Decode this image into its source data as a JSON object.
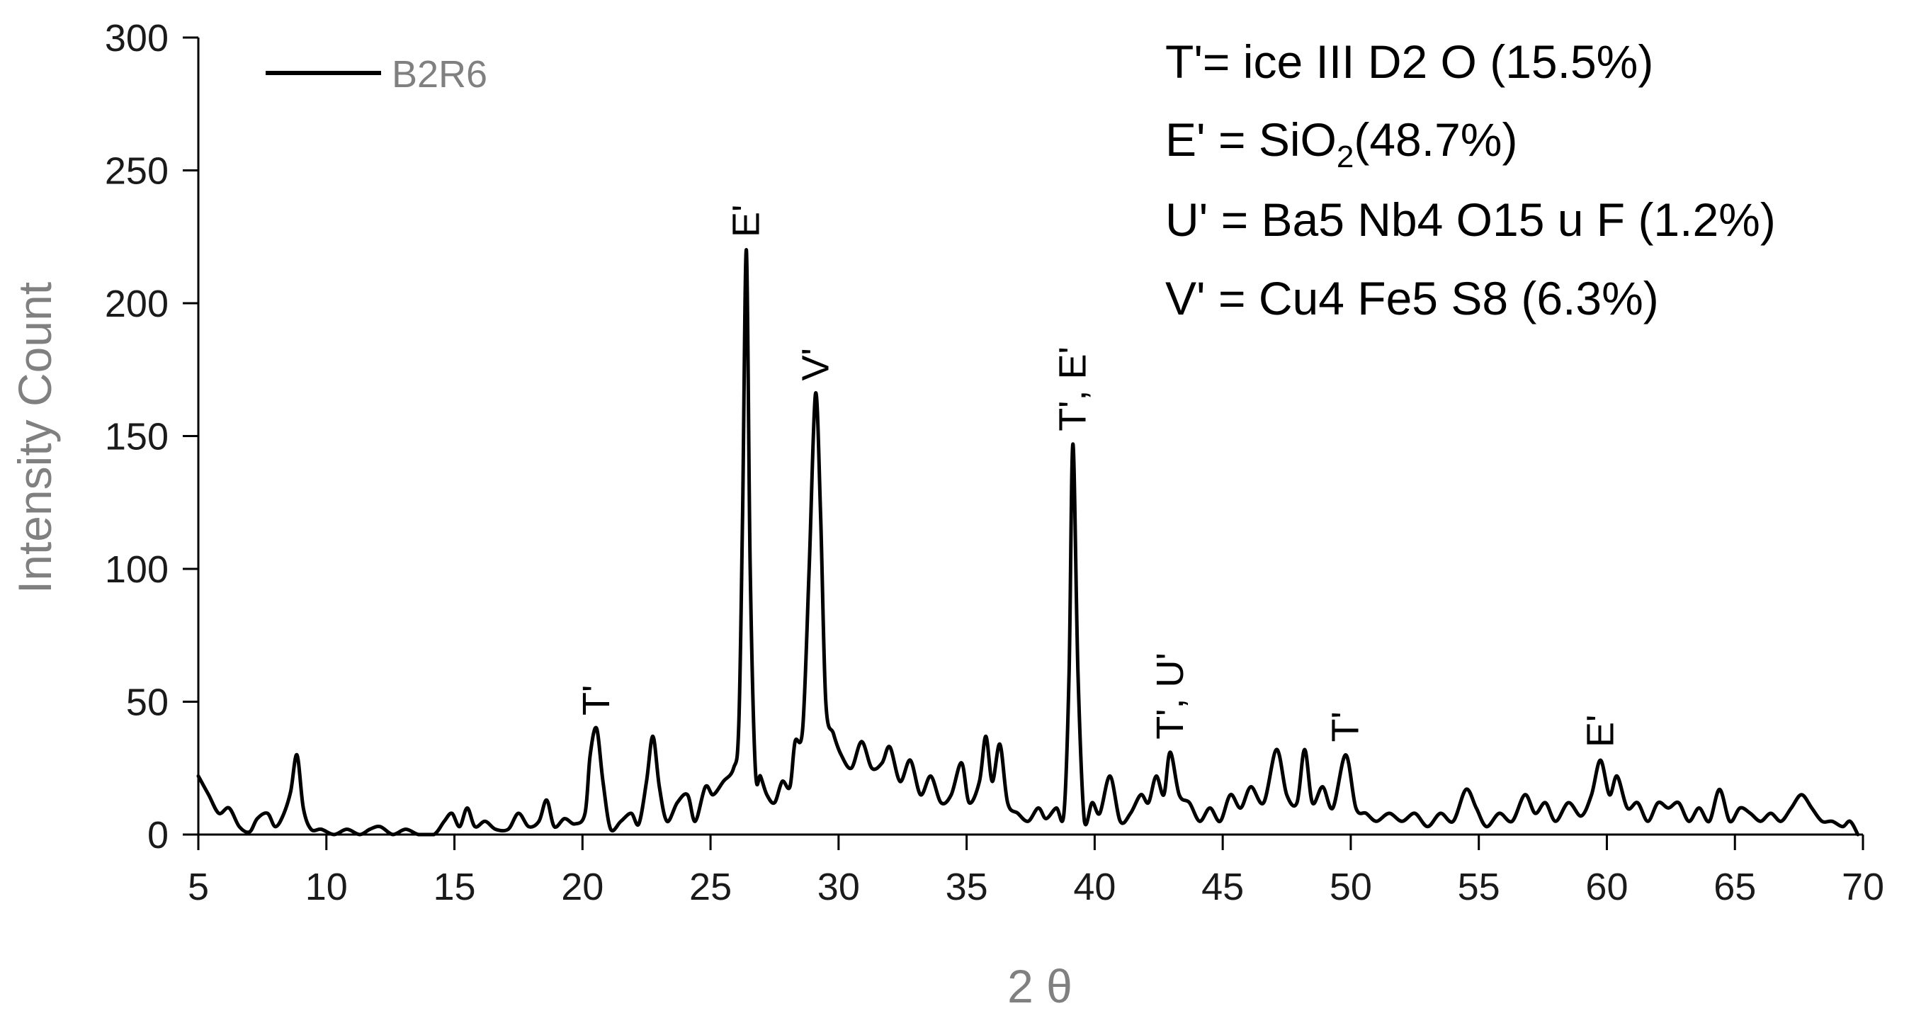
{
  "chart_data": {
    "type": "line",
    "xlabel": "2 θ",
    "ylabel": "Intensity Count",
    "xlim": [
      5,
      70
    ],
    "ylim": [
      0,
      300
    ],
    "x_ticks": [
      5,
      10,
      15,
      20,
      25,
      30,
      35,
      40,
      45,
      50,
      55,
      60,
      65,
      70
    ],
    "y_ticks": [
      0,
      50,
      100,
      150,
      200,
      250,
      300
    ],
    "x_tick_labels": [
      "5",
      "10",
      "15",
      "20",
      "25",
      "30",
      "35",
      "40",
      "45",
      "50",
      "55",
      "60",
      "65",
      "70"
    ],
    "y_tick_labels": [
      "0",
      "50",
      "100",
      "150",
      "200",
      "250",
      "300"
    ],
    "grid": false,
    "legend_position": "top-left",
    "series": [
      {
        "name": "B2R6",
        "color": "#000000",
        "points": [
          [
            5.0,
            22
          ],
          [
            5.4,
            15
          ],
          [
            5.8,
            8
          ],
          [
            6.2,
            10
          ],
          [
            6.6,
            3
          ],
          [
            7.0,
            1
          ],
          [
            7.3,
            6
          ],
          [
            7.7,
            8
          ],
          [
            8.0,
            3
          ],
          [
            8.3,
            7
          ],
          [
            8.6,
            16
          ],
          [
            8.85,
            30
          ],
          [
            9.1,
            10
          ],
          [
            9.4,
            2
          ],
          [
            9.8,
            2
          ],
          [
            10.3,
            0
          ],
          [
            10.8,
            2
          ],
          [
            11.3,
            0
          ],
          [
            11.7,
            2
          ],
          [
            12.1,
            3
          ],
          [
            12.6,
            0
          ],
          [
            13.1,
            2
          ],
          [
            13.6,
            0
          ],
          [
            14.2,
            0
          ],
          [
            14.6,
            5
          ],
          [
            14.9,
            8
          ],
          [
            15.2,
            3
          ],
          [
            15.5,
            10
          ],
          [
            15.8,
            3
          ],
          [
            16.2,
            5
          ],
          [
            16.6,
            2
          ],
          [
            17.1,
            2
          ],
          [
            17.5,
            8
          ],
          [
            17.9,
            3
          ],
          [
            18.3,
            5
          ],
          [
            18.6,
            13
          ],
          [
            18.9,
            3
          ],
          [
            19.3,
            6
          ],
          [
            19.7,
            4
          ],
          [
            20.1,
            8
          ],
          [
            20.3,
            30
          ],
          [
            20.55,
            40
          ],
          [
            20.8,
            20
          ],
          [
            21.1,
            2
          ],
          [
            21.5,
            5
          ],
          [
            21.9,
            8
          ],
          [
            22.2,
            4
          ],
          [
            22.5,
            20
          ],
          [
            22.75,
            37
          ],
          [
            23.0,
            18
          ],
          [
            23.3,
            5
          ],
          [
            23.7,
            12
          ],
          [
            24.1,
            15
          ],
          [
            24.4,
            5
          ],
          [
            24.8,
            18
          ],
          [
            25.1,
            15
          ],
          [
            25.5,
            20
          ],
          [
            25.9,
            25
          ],
          [
            26.1,
            40
          ],
          [
            26.25,
            120
          ],
          [
            26.4,
            220
          ],
          [
            26.55,
            100
          ],
          [
            26.75,
            25
          ],
          [
            26.95,
            22
          ],
          [
            27.2,
            15
          ],
          [
            27.5,
            12
          ],
          [
            27.8,
            20
          ],
          [
            28.1,
            18
          ],
          [
            28.3,
            35
          ],
          [
            28.6,
            40
          ],
          [
            28.85,
            100
          ],
          [
            29.1,
            166
          ],
          [
            29.3,
            120
          ],
          [
            29.5,
            50
          ],
          [
            29.8,
            38
          ],
          [
            30.1,
            30
          ],
          [
            30.5,
            25
          ],
          [
            30.9,
            35
          ],
          [
            31.3,
            25
          ],
          [
            31.7,
            27
          ],
          [
            32.0,
            33
          ],
          [
            32.4,
            20
          ],
          [
            32.8,
            28
          ],
          [
            33.2,
            15
          ],
          [
            33.6,
            22
          ],
          [
            34.0,
            12
          ],
          [
            34.4,
            15
          ],
          [
            34.8,
            27
          ],
          [
            35.1,
            12
          ],
          [
            35.5,
            20
          ],
          [
            35.75,
            37
          ],
          [
            36.0,
            20
          ],
          [
            36.3,
            34
          ],
          [
            36.6,
            12
          ],
          [
            37.0,
            8
          ],
          [
            37.4,
            5
          ],
          [
            37.8,
            10
          ],
          [
            38.1,
            6
          ],
          [
            38.5,
            10
          ],
          [
            38.8,
            8
          ],
          [
            39.0,
            60
          ],
          [
            39.15,
            147
          ],
          [
            39.35,
            60
          ],
          [
            39.6,
            5
          ],
          [
            39.9,
            12
          ],
          [
            40.2,
            8
          ],
          [
            40.6,
            22
          ],
          [
            41.0,
            5
          ],
          [
            41.4,
            8
          ],
          [
            41.8,
            15
          ],
          [
            42.1,
            12
          ],
          [
            42.4,
            22
          ],
          [
            42.7,
            15
          ],
          [
            42.95,
            31
          ],
          [
            43.3,
            15
          ],
          [
            43.7,
            12
          ],
          [
            44.1,
            5
          ],
          [
            44.5,
            10
          ],
          [
            44.9,
            5
          ],
          [
            45.3,
            15
          ],
          [
            45.7,
            10
          ],
          [
            46.1,
            18
          ],
          [
            46.6,
            12
          ],
          [
            47.1,
            32
          ],
          [
            47.5,
            15
          ],
          [
            47.9,
            12
          ],
          [
            48.2,
            32
          ],
          [
            48.5,
            12
          ],
          [
            48.9,
            18
          ],
          [
            49.3,
            10
          ],
          [
            49.8,
            30
          ],
          [
            50.2,
            10
          ],
          [
            50.6,
            8
          ],
          [
            51.0,
            5
          ],
          [
            51.5,
            8
          ],
          [
            52.0,
            5
          ],
          [
            52.5,
            8
          ],
          [
            53.0,
            3
          ],
          [
            53.5,
            8
          ],
          [
            54.0,
            5
          ],
          [
            54.5,
            17
          ],
          [
            54.9,
            10
          ],
          [
            55.3,
            3
          ],
          [
            55.8,
            8
          ],
          [
            56.3,
            5
          ],
          [
            56.8,
            15
          ],
          [
            57.2,
            8
          ],
          [
            57.6,
            12
          ],
          [
            58.0,
            5
          ],
          [
            58.5,
            12
          ],
          [
            59.0,
            7
          ],
          [
            59.4,
            15
          ],
          [
            59.75,
            28
          ],
          [
            60.1,
            15
          ],
          [
            60.4,
            22
          ],
          [
            60.8,
            10
          ],
          [
            61.2,
            12
          ],
          [
            61.6,
            5
          ],
          [
            62.0,
            12
          ],
          [
            62.4,
            10
          ],
          [
            62.8,
            12
          ],
          [
            63.2,
            5
          ],
          [
            63.6,
            10
          ],
          [
            64.0,
            5
          ],
          [
            64.4,
            17
          ],
          [
            64.8,
            5
          ],
          [
            65.2,
            10
          ],
          [
            65.6,
            8
          ],
          [
            66.0,
            5
          ],
          [
            66.4,
            8
          ],
          [
            66.8,
            5
          ],
          [
            67.2,
            10
          ],
          [
            67.6,
            15
          ],
          [
            68.0,
            10
          ],
          [
            68.4,
            5
          ],
          [
            68.8,
            5
          ],
          [
            69.2,
            3
          ],
          [
            69.5,
            5
          ],
          [
            69.8,
            0
          ]
        ]
      }
    ],
    "peak_labels": [
      {
        "text": "T'",
        "x": 20.55,
        "y": 40
      },
      {
        "text": "E'",
        "x": 26.4,
        "y": 220
      },
      {
        "text": "V'",
        "x": 29.1,
        "y": 166
      },
      {
        "text": "T', E'",
        "x": 39.15,
        "y": 147
      },
      {
        "text": "T', U'",
        "x": 42.95,
        "y": 31
      },
      {
        "text": "T'",
        "x": 49.8,
        "y": 30
      },
      {
        "text": "E'",
        "x": 59.75,
        "y": 28
      }
    ]
  },
  "legend": {
    "label": "B2R6"
  },
  "annotation_lines": [
    {
      "text": "T'=  ice III D2 O (15.5%)"
    },
    {
      "text_before": "E' = SiO",
      "subscript": "2",
      "text_after": "(48.7%)"
    },
    {
      "text": "U' = Ba5 Nb4 O15 u F (1.2%)"
    },
    {
      "text": "V' = Cu4 Fe5 S8 (6.3%)"
    }
  ]
}
